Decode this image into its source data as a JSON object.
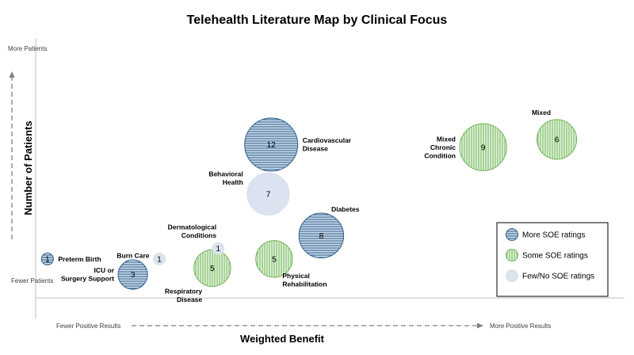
{
  "chart_data": {
    "type": "bubble",
    "title": "Telehealth Literature Map by Clinical Focus",
    "xlabel": "Weighted Benefit",
    "ylabel": "Number of Patients",
    "x_low_label": "Fewer Positive Results",
    "x_high_label": "More Positive Results",
    "y_low_label": "Fewer Patients",
    "y_high_label": "More Patients",
    "x_range": [
      0,
      100
    ],
    "y_range": [
      0,
      100
    ],
    "legend_position": "right",
    "categories": [
      {
        "key": "more",
        "name": "More SOE ratings",
        "color": "#2e5f8a",
        "fill": "#c9d8ea",
        "pattern": "horizontal"
      },
      {
        "key": "some",
        "name": "Some SOE ratings",
        "color": "#70b65a",
        "fill": "#e4f2dc",
        "pattern": "vertical"
      },
      {
        "key": "few",
        "name": "Few/No SOE ratings",
        "color": "#c5d3e6",
        "fill": "#dae3ef",
        "pattern": "solid"
      }
    ],
    "points": [
      {
        "label": "Preterm Birth",
        "count": 1,
        "category": "more",
        "x": 2,
        "y": 15
      },
      {
        "label": "Burn Care",
        "count": 1,
        "category": "few",
        "x": 21,
        "y": 15
      },
      {
        "label": "ICU or Surgery Support",
        "count": 3,
        "category": "more",
        "x": 16.5,
        "y": 9
      },
      {
        "label": "Dermatological Conditions",
        "count": 1,
        "category": "few",
        "x": 31,
        "y": 19
      },
      {
        "label": "Respiratory Disease",
        "count": 5,
        "category": "some",
        "x": 30,
        "y": 11.5
      },
      {
        "label": "Behavioral Health",
        "count": 7,
        "category": "few",
        "x": 39.5,
        "y": 40
      },
      {
        "label": "Cardiovascular Disease",
        "count": 12,
        "category": "more",
        "x": 40,
        "y": 59
      },
      {
        "label": "Physical Rehabilitation",
        "count": 5,
        "category": "some",
        "x": 40.5,
        "y": 15
      },
      {
        "label": "Diabetes",
        "count": 8,
        "category": "more",
        "x": 48.5,
        "y": 24
      },
      {
        "label": "Mixed Chronic Condition",
        "count": 9,
        "category": "some",
        "x": 76,
        "y": 58
      },
      {
        "label": "Mixed",
        "count": 6,
        "category": "some",
        "x": 88.5,
        "y": 61
      }
    ]
  }
}
